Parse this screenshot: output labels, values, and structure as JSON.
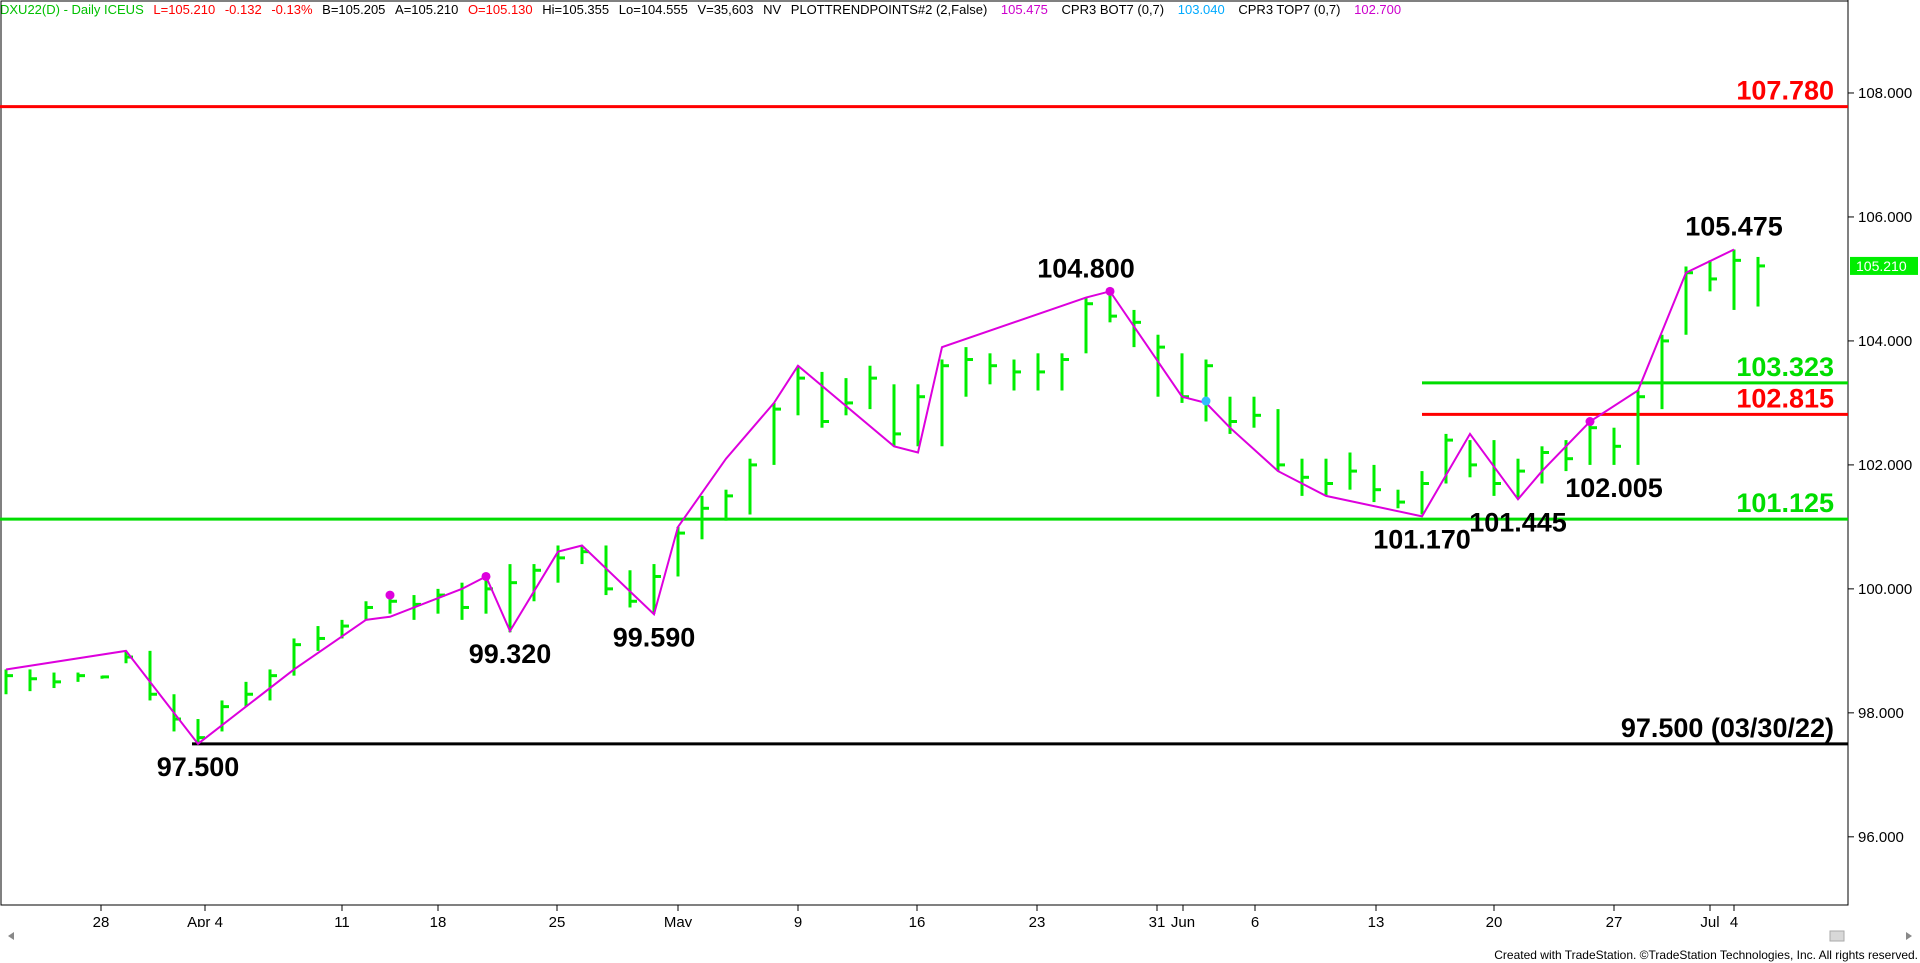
{
  "header": {
    "symbol": "DXU22(D) - Daily  ICEUS",
    "last": "L=105.210",
    "change": "-0.132",
    "change_pct": "-0.13%",
    "bid": "B=105.205",
    "ask": "A=105.210",
    "open": "O=105.130",
    "high": "Hi=105.355",
    "low": "Lo=104.555",
    "volume": "V=35,603",
    "nv": "NV",
    "study1": "PLOTTRENDPOINTS#2 (2,False)",
    "study1_value": "105.475",
    "study2": "CPR3 BOT7 (0,7)",
    "study2_value": "103.040",
    "study3": "CPR3 TOP7 (0,7)",
    "study3_value": "102.700",
    "colors": {
      "symbol": "#00c000",
      "quote": "#ff0000",
      "neutral": "#000000",
      "study1": "#cc00cc",
      "study2": "#00aaff",
      "study3": "#cc00cc"
    }
  },
  "footer": {
    "credit": "Created with TradeStation. ©TradeStation Technologies, Inc. All rights reserved."
  },
  "chart_data": {
    "type": "bar",
    "x_ticks": [
      "28",
      "Apr 4",
      "11",
      "18",
      "25",
      "May",
      "9",
      "16",
      "23",
      "31",
      "Jun",
      "6",
      "13",
      "20",
      "27",
      "Jul",
      "4"
    ],
    "y_ticks": [
      "96.000",
      "98.000",
      "100.000",
      "102.000",
      "104.000",
      "106.000",
      "108.000"
    ],
    "ylim": [
      94.9,
      109.5
    ],
    "last_price_label": "105.210",
    "bars": [
      {
        "h": 98.7,
        "l": 98.3,
        "c": 98.6
      },
      {
        "h": 98.7,
        "l": 98.35,
        "c": 98.55
      },
      {
        "h": 98.65,
        "l": 98.4,
        "c": 98.5
      },
      {
        "h": 98.65,
        "l": 98.5,
        "c": 98.6
      },
      {
        "h": 98.6,
        "l": 98.55,
        "c": 98.58
      },
      {
        "h": 99.0,
        "l": 98.8,
        "c": 98.9
      },
      {
        "h": 99.0,
        "l": 98.2,
        "c": 98.3
      },
      {
        "h": 98.3,
        "l": 97.7,
        "c": 97.9
      },
      {
        "h": 97.9,
        "l": 97.5,
        "c": 97.6
      },
      {
        "h": 98.2,
        "l": 97.7,
        "c": 98.1
      },
      {
        "h": 98.5,
        "l": 98.1,
        "c": 98.3
      },
      {
        "h": 98.7,
        "l": 98.2,
        "c": 98.6
      },
      {
        "h": 99.2,
        "l": 98.6,
        "c": 99.1
      },
      {
        "h": 99.4,
        "l": 99.0,
        "c": 99.2
      },
      {
        "h": 99.5,
        "l": 99.2,
        "c": 99.4
      },
      {
        "h": 99.8,
        "l": 99.5,
        "c": 99.7
      },
      {
        "h": 99.9,
        "l": 99.6,
        "c": 99.8
      },
      {
        "h": 99.9,
        "l": 99.5,
        "c": 99.75
      },
      {
        "h": 100.0,
        "l": 99.6,
        "c": 99.9
      },
      {
        "h": 100.1,
        "l": 99.5,
        "c": 99.7
      },
      {
        "h": 100.2,
        "l": 99.6,
        "c": 100.0
      },
      {
        "h": 100.4,
        "l": 99.3,
        "c": 100.1
      },
      {
        "h": 100.4,
        "l": 99.8,
        "c": 100.3
      },
      {
        "h": 100.7,
        "l": 100.1,
        "c": 100.5
      },
      {
        "h": 100.7,
        "l": 100.4,
        "c": 100.6
      },
      {
        "h": 100.7,
        "l": 99.9,
        "c": 100.0
      },
      {
        "h": 100.3,
        "l": 99.7,
        "c": 99.8
      },
      {
        "h": 100.4,
        "l": 99.6,
        "c": 100.2
      },
      {
        "h": 101.0,
        "l": 100.2,
        "c": 100.9
      },
      {
        "h": 101.5,
        "l": 100.8,
        "c": 101.3
      },
      {
        "h": 101.6,
        "l": 101.1,
        "c": 101.5
      },
      {
        "h": 102.1,
        "l": 101.2,
        "c": 102.0
      },
      {
        "h": 103.0,
        "l": 102.0,
        "c": 102.9
      },
      {
        "h": 103.6,
        "l": 102.8,
        "c": 103.4
      },
      {
        "h": 103.5,
        "l": 102.6,
        "c": 102.7
      },
      {
        "h": 103.4,
        "l": 102.8,
        "c": 103.0
      },
      {
        "h": 103.6,
        "l": 102.9,
        "c": 103.4
      },
      {
        "h": 103.3,
        "l": 102.3,
        "c": 102.5
      },
      {
        "h": 103.3,
        "l": 102.3,
        "c": 103.1
      },
      {
        "h": 103.7,
        "l": 102.3,
        "c": 103.6
      },
      {
        "h": 103.9,
        "l": 103.1,
        "c": 103.7
      },
      {
        "h": 103.8,
        "l": 103.3,
        "c": 103.6
      },
      {
        "h": 103.7,
        "l": 103.2,
        "c": 103.5
      },
      {
        "h": 103.8,
        "l": 103.2,
        "c": 103.5
      },
      {
        "h": 103.8,
        "l": 103.2,
        "c": 103.7
      },
      {
        "h": 104.7,
        "l": 103.8,
        "c": 104.6
      },
      {
        "h": 104.8,
        "l": 104.3,
        "c": 104.4
      },
      {
        "h": 104.5,
        "l": 103.9,
        "c": 104.3
      },
      {
        "h": 104.1,
        "l": 103.1,
        "c": 103.9
      },
      {
        "h": 103.8,
        "l": 103.0,
        "c": 103.1
      },
      {
        "h": 103.7,
        "l": 102.7,
        "c": 103.6
      },
      {
        "h": 103.1,
        "l": 102.5,
        "c": 102.7
      },
      {
        "h": 103.1,
        "l": 102.6,
        "c": 102.8
      },
      {
        "h": 102.9,
        "l": 101.9,
        "c": 102.0
      },
      {
        "h": 102.1,
        "l": 101.5,
        "c": 101.8
      },
      {
        "h": 102.1,
        "l": 101.5,
        "c": 101.7
      },
      {
        "h": 102.2,
        "l": 101.6,
        "c": 101.9
      },
      {
        "h": 102.0,
        "l": 101.4,
        "c": 101.6
      },
      {
        "h": 101.6,
        "l": 101.3,
        "c": 101.4
      },
      {
        "h": 101.9,
        "l": 101.2,
        "c": 101.7
      },
      {
        "h": 102.5,
        "l": 101.7,
        "c": 102.4
      },
      {
        "h": 102.4,
        "l": 101.8,
        "c": 102.0
      },
      {
        "h": 102.4,
        "l": 101.5,
        "c": 101.7
      },
      {
        "h": 102.1,
        "l": 101.45,
        "c": 101.9
      },
      {
        "h": 102.3,
        "l": 101.7,
        "c": 102.2
      },
      {
        "h": 102.4,
        "l": 101.9,
        "c": 102.1
      },
      {
        "h": 102.7,
        "l": 102.0,
        "c": 102.6
      },
      {
        "h": 102.6,
        "l": 102.0,
        "c": 102.3
      },
      {
        "h": 103.2,
        "l": 102.0,
        "c": 103.1
      },
      {
        "h": 104.1,
        "l": 102.9,
        "c": 104.0
      },
      {
        "h": 105.2,
        "l": 104.1,
        "c": 105.1
      },
      {
        "h": 105.3,
        "l": 104.8,
        "c": 105.0
      },
      {
        "h": 105.475,
        "l": 104.5,
        "c": 105.3
      },
      {
        "h": 105.355,
        "l": 104.555,
        "c": 105.21
      }
    ],
    "trend_line": [
      [
        0,
        98.7
      ],
      [
        5,
        99.0
      ],
      [
        8,
        97.5
      ],
      [
        12,
        98.7
      ],
      [
        15,
        99.5
      ],
      [
        16,
        99.55
      ],
      [
        19,
        100.0
      ],
      [
        20,
        100.2
      ],
      [
        21,
        99.32
      ],
      [
        23,
        100.6
      ],
      [
        24,
        100.7
      ],
      [
        27,
        99.59
      ],
      [
        28,
        101.0
      ],
      [
        30,
        102.1
      ],
      [
        32,
        103.0
      ],
      [
        33,
        103.6
      ],
      [
        37,
        102.3
      ],
      [
        38,
        102.2
      ],
      [
        39,
        103.9
      ],
      [
        45,
        104.7
      ],
      [
        46,
        104.8
      ],
      [
        49,
        103.1
      ],
      [
        50,
        103.0
      ],
      [
        51,
        102.6
      ],
      [
        53,
        101.9
      ],
      [
        55,
        101.5
      ],
      [
        59,
        101.17
      ],
      [
        61,
        102.5
      ],
      [
        63,
        101.445
      ],
      [
        64,
        101.9
      ],
      [
        66,
        102.7
      ],
      [
        68,
        103.2
      ],
      [
        70,
        105.1
      ],
      [
        72,
        105.475
      ]
    ],
    "trend_points": [
      {
        "x": 16,
        "y": 99.9,
        "color": "#dd00dd"
      },
      {
        "x": 20,
        "y": 100.2,
        "color": "#dd00dd"
      },
      {
        "x": 46,
        "y": 104.8,
        "color": "#dd00dd"
      },
      {
        "x": 50,
        "y": 103.03,
        "color": "#33bbff"
      },
      {
        "x": 66,
        "y": 102.7,
        "color": "#dd00dd"
      }
    ],
    "horizontal_lines": [
      {
        "value": 107.78,
        "label": "107.780",
        "color": "#ff0000",
        "from": "left"
      },
      {
        "value": 103.323,
        "label": "103.323",
        "color": "#00dd00",
        "from": "jun"
      },
      {
        "value": 102.815,
        "label": "102.815",
        "color": "#ff0000",
        "from": "jun"
      },
      {
        "value": 101.125,
        "label": "101.125",
        "color": "#00dd00",
        "from": "left"
      },
      {
        "value": 97.5,
        "label": "97.500 (03/30/22)",
        "color": "#000000",
        "from": "apr"
      }
    ],
    "annotations": [
      {
        "text": "97.500",
        "x": 8,
        "y": 97.5,
        "pos": "below"
      },
      {
        "text": "99.320",
        "x": 21,
        "y": 99.32,
        "pos": "below"
      },
      {
        "text": "99.590",
        "x": 27,
        "y": 99.59,
        "pos": "below"
      },
      {
        "text": "104.800",
        "x": 45,
        "y": 104.8,
        "pos": "above"
      },
      {
        "text": "101.170",
        "x": 59,
        "y": 101.17,
        "pos": "below"
      },
      {
        "text": "101.445",
        "x": 63,
        "y": 101.445,
        "pos": "below"
      },
      {
        "text": "102.005",
        "x": 67,
        "y": 102.0,
        "pos": "below"
      },
      {
        "text": "105.475",
        "x": 72,
        "y": 105.475,
        "pos": "above"
      }
    ]
  }
}
